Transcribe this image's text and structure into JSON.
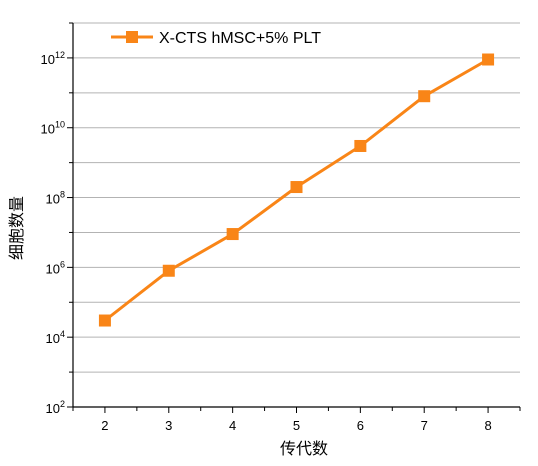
{
  "chart_data": {
    "type": "line",
    "title": "",
    "xlabel": "传代数",
    "ylabel": "细胞数量",
    "y_scale": "log",
    "y_tick_base": "10",
    "y_tick_exponents": [
      "2",
      "4",
      "6",
      "8",
      "10",
      "12"
    ],
    "x_ticks": [
      "2",
      "3",
      "4",
      "5",
      "6",
      "7",
      "8"
    ],
    "xlim": [
      1.5,
      8.5
    ],
    "ylim": [
      100,
      10000000000000
    ],
    "grid": "horizontal",
    "legend_position": "top-left",
    "series": [
      {
        "name": "X-CTS hMSC+5% PLT",
        "color": "#F98517",
        "marker": "square",
        "x": [
          2,
          3,
          4,
          5,
          6,
          7,
          8
        ],
        "y": [
          30000,
          800000,
          9000000,
          200000000,
          3000000000,
          80000000000,
          900000000000
        ]
      }
    ]
  }
}
